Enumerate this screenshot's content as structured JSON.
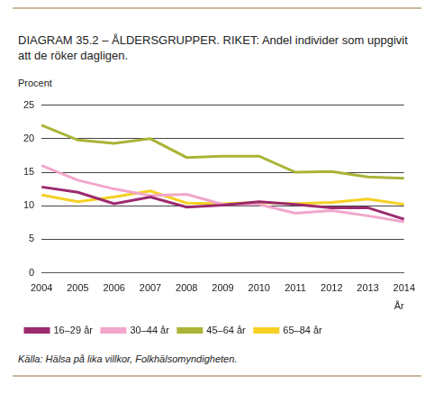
{
  "chart_data": {
    "type": "line",
    "title": "DIAGRAM 35.2 – ÅLDERSGRUPPER. RIKET: Andel individer som uppgivit att de röker dagligen.",
    "ylabel": "Procent",
    "xlabel": "År",
    "source": "Källa: Hälsa på lika villkor, Folkhälsomyndigheten.",
    "categories": [
      "2004",
      "2005",
      "2006",
      "2007",
      "2008",
      "2009",
      "2010",
      "2011",
      "2012",
      "2013",
      "2014"
    ],
    "series": [
      {
        "name": "16–29 år",
        "color": "#9b2a6e",
        "values": [
          12.8,
          12.0,
          10.3,
          11.3,
          9.8,
          10.1,
          10.6,
          10.2,
          9.7,
          9.7,
          8.0
        ]
      },
      {
        "name": "30–44 år",
        "color": "#f2a6cb",
        "values": [
          16.0,
          13.8,
          12.5,
          11.5,
          11.7,
          10.2,
          10.2,
          8.9,
          9.3,
          8.5,
          7.6
        ]
      },
      {
        "name": "45–64 år",
        "color": "#a9b436",
        "values": [
          22.0,
          19.8,
          19.3,
          20.0,
          17.2,
          17.4,
          17.4,
          15.0,
          15.1,
          14.3,
          14.1
        ]
      },
      {
        "name": "65–84 år",
        "color": "#f6d023",
        "values": [
          11.6,
          10.6,
          11.3,
          12.2,
          10.4,
          10.3,
          10.5,
          10.3,
          10.5,
          11.0,
          10.2
        ]
      }
    ],
    "ylim": [
      0,
      25
    ],
    "yticks": [
      0,
      5,
      10,
      15,
      20,
      25
    ],
    "grid": true,
    "legend": "bottom"
  }
}
